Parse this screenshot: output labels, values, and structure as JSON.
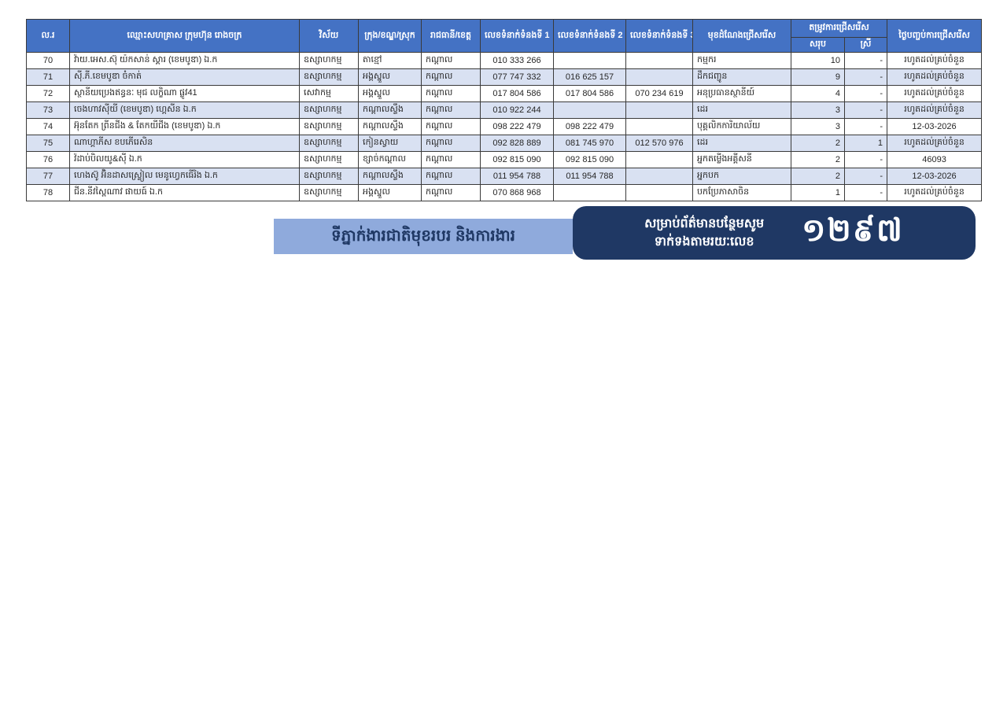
{
  "colors": {
    "header_blue": "#4472C4",
    "row_alt_blue": "#D9E1F2",
    "banner_light_blue": "#8FAADC",
    "banner_navy": "#1F3864",
    "border": "#3a3a3a"
  },
  "table": {
    "columns": {
      "no": "ល.រ",
      "name": "ឈ្មោះសហគ្រាស ក្រុមហ៊ុន រោងចក្រ",
      "sector": "វិស័យ",
      "district": "ក្រុង/ខណ្ឌ/ស្រុក",
      "province": "រាជធានី/ខេត្ត",
      "phone1": "លេខទំនាក់ទំនងទី 1",
      "phone2": "លេខទំនាក់ទំនងទី 2",
      "phone3": "លេខទំនាក់ទំនងទី 3",
      "position": "មុខដំណែងជ្រើសរើស",
      "need_group": "តម្រូវការជ្រើសរើស",
      "total": "សរុប",
      "female": "ស្រី",
      "end_date": "ថ្ងៃបញ្ចប់ការជ្រើសរើស"
    },
    "rows": [
      {
        "no": "70",
        "name": "វ៉ាយ.អេស.ស៊ុ យ៉កសាន់ ស្គារ (ខេមបូឌា) ឯ.ក",
        "sector": "ឧស្សាហកម្ម",
        "district": "តាខ្មៅ",
        "province": "កណ្តាល",
        "phone1": "010 333 266",
        "phone2": "",
        "phone3": "",
        "position": "កម្មករ",
        "total": "10",
        "female": "-",
        "end_date": "រហូតដល់គ្រប់ចំនួន"
      },
      {
        "no": "71",
        "name": "ស៊ី.ភី.ខេមបូឌា ចំកាត់",
        "sector": "ឧស្សាហកម្ម",
        "district": "អង្គស្នួល",
        "province": "កណ្តាល",
        "phone1": "077 747 332",
        "phone2": "016 625 157",
        "phone3": "",
        "position": "ដឹកជញ្ជូន",
        "total": "9",
        "female": "-",
        "end_date": "រហូតដល់គ្រប់ចំនួន"
      },
      {
        "no": "72",
        "name": "ស្ថានីយប្រេងឥន្ធនៈ មុជ លក្ខិណា ផ្លូវ41",
        "sector": "សេវាកម្ម",
        "district": "អង្គស្នួល",
        "province": "កណ្តាល",
        "phone1": "017 804 586",
        "phone2": "017 804 586",
        "phone3": "070 234 619",
        "position": "អនុប្រធានស្ថានីយ៍",
        "total": "4",
        "female": "-",
        "end_date": "រហូតដល់គ្រប់ចំនួន"
      },
      {
        "no": "73",
        "name": "ចេងហាវស៊ីយី (ខេមបូឌា) ហ្គេសីន ឯ.ក",
        "sector": "ឧស្សាហកម្ម",
        "district": "កណ្តាលស្ទឹង",
        "province": "កណ្តាល",
        "phone1": "010 922 244",
        "phone2": "",
        "phone3": "",
        "position": "ដេរ",
        "total": "3",
        "female": "-",
        "end_date": "រហូតដល់គ្រប់ចំនួន"
      },
      {
        "no": "74",
        "name": "អ៊ុនតែក ព្រីនជីង & តែកយីជីង (ខេមបូឌា) ឯ.ក",
        "sector": "ឧស្សាហកម្ម",
        "district": "កណ្តាលស្ទឹង",
        "province": "កណ្តាល",
        "phone1": "098 222 479",
        "phone2": "098 222 479",
        "phone3": "",
        "position": "បុគ្គលិកការិយាល័យ",
        "total": "3",
        "female": "-",
        "end_date": "12-03-2026"
      },
      {
        "no": "75",
        "name": "ណាហ្គាភីស ខបភើរេសិន",
        "sector": "ឧស្សាហកម្ម",
        "district": "កៀនស្វាយ",
        "province": "កណ្តាល",
        "phone1": "092 828 889",
        "phone2": "081 745 970",
        "phone3": "012 570 976",
        "position": "ដេរ",
        "total": "2",
        "female": "1",
        "end_date": "រហូតដល់គ្រប់ចំនួន"
      },
      {
        "no": "76",
        "name": "វ៉ដាប់បិលយូ&ស៊ី ឯ.ក",
        "sector": "ឧស្សាហកម្ម",
        "district": "ខ្សាច់កណ្តាល",
        "province": "កណ្តាល",
        "phone1": "092 815 090",
        "phone2": "092 815 090",
        "phone3": "",
        "position": "អ្នកតម្លើងអគ្គីសនី",
        "total": "2",
        "female": "-",
        "end_date": "46093"
      },
      {
        "no": "77",
        "name": "ហេងស៊ូ អ៊ិនដាសស្រ្ទៀល មេនូហ្វេកធើរិង ឯ.ក",
        "sector": "ឧស្សាហកម្ម",
        "district": "កណ្តាលស្ទឹង",
        "province": "កណ្តាល",
        "phone1": "011 954 788",
        "phone2": "011 954 788",
        "phone3": "",
        "position": "អ្នកបក",
        "total": "2",
        "female": "-",
        "end_date": "12-03-2026"
      },
      {
        "no": "78",
        "name": "ជីន.នីវស្ពៃណាវ ផាយធ៍ ឯ.ក",
        "sector": "ឧស្សាហកម្ម",
        "district": "អង្គស្នួល",
        "province": "កណ្តាល",
        "phone1": "070 868 968",
        "phone2": "",
        "phone3": "",
        "position": "បកប្រែភាសាចិន",
        "total": "1",
        "female": "-",
        "end_date": "រហូតដល់គ្រប់ចំនួន"
      }
    ]
  },
  "footer": {
    "agency_label": "ទីភ្នាក់ងារជាតិមុខរបរ និងការងារ",
    "hotline_line1": "សម្រាប់ព័ត៌មានបន្ថែមសូម",
    "hotline_line2": "ទាក់ទងតាមរយៈលេខ",
    "hotline_number": "១២៩៧"
  }
}
